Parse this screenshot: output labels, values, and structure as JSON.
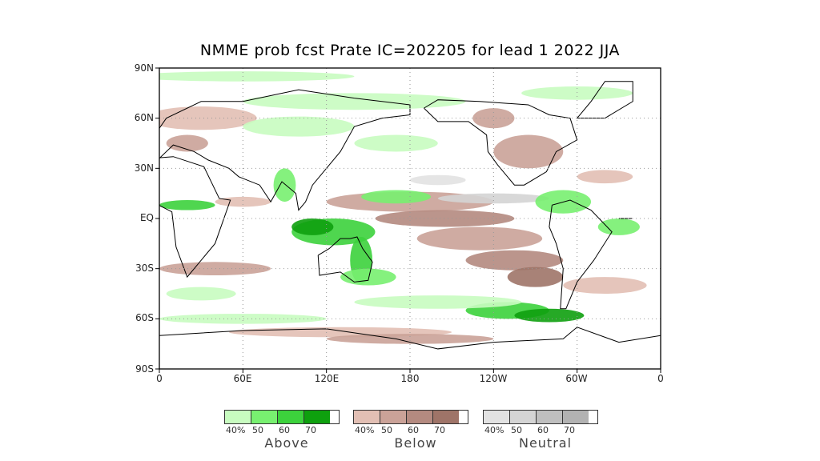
{
  "title": "NMME prob fcst Prate IC=202205 for lead 1 2022 JJA",
  "map": {
    "lat_labels": [
      "90N",
      "60N",
      "30N",
      "EQ",
      "30S",
      "60S",
      "90S"
    ],
    "lon_labels": [
      "0",
      "60E",
      "120E",
      "180",
      "120W",
      "60W",
      "0"
    ],
    "projection": "cylindrical equidistant, 0-360 longitude",
    "gridlines": "dotted"
  },
  "legend": [
    {
      "name": "Above",
      "ticks": [
        "40%",
        "50",
        "60",
        "70"
      ],
      "colors": [
        "#c8fcc0",
        "#78f070",
        "#3cd23c",
        "#0ea00e"
      ]
    },
    {
      "name": "Below",
      "ticks": [
        "40%",
        "50",
        "60",
        "70"
      ],
      "colors": [
        "#e2bfb4",
        "#caa298",
        "#b48a80",
        "#9f7468"
      ]
    },
    {
      "name": "Neutral",
      "ticks": [
        "40%",
        "50",
        "60",
        "70"
      ],
      "colors": [
        "#e2e2e2",
        "#d4d4d4",
        "#bfbfbf",
        "#b2b2b2"
      ]
    }
  ]
}
